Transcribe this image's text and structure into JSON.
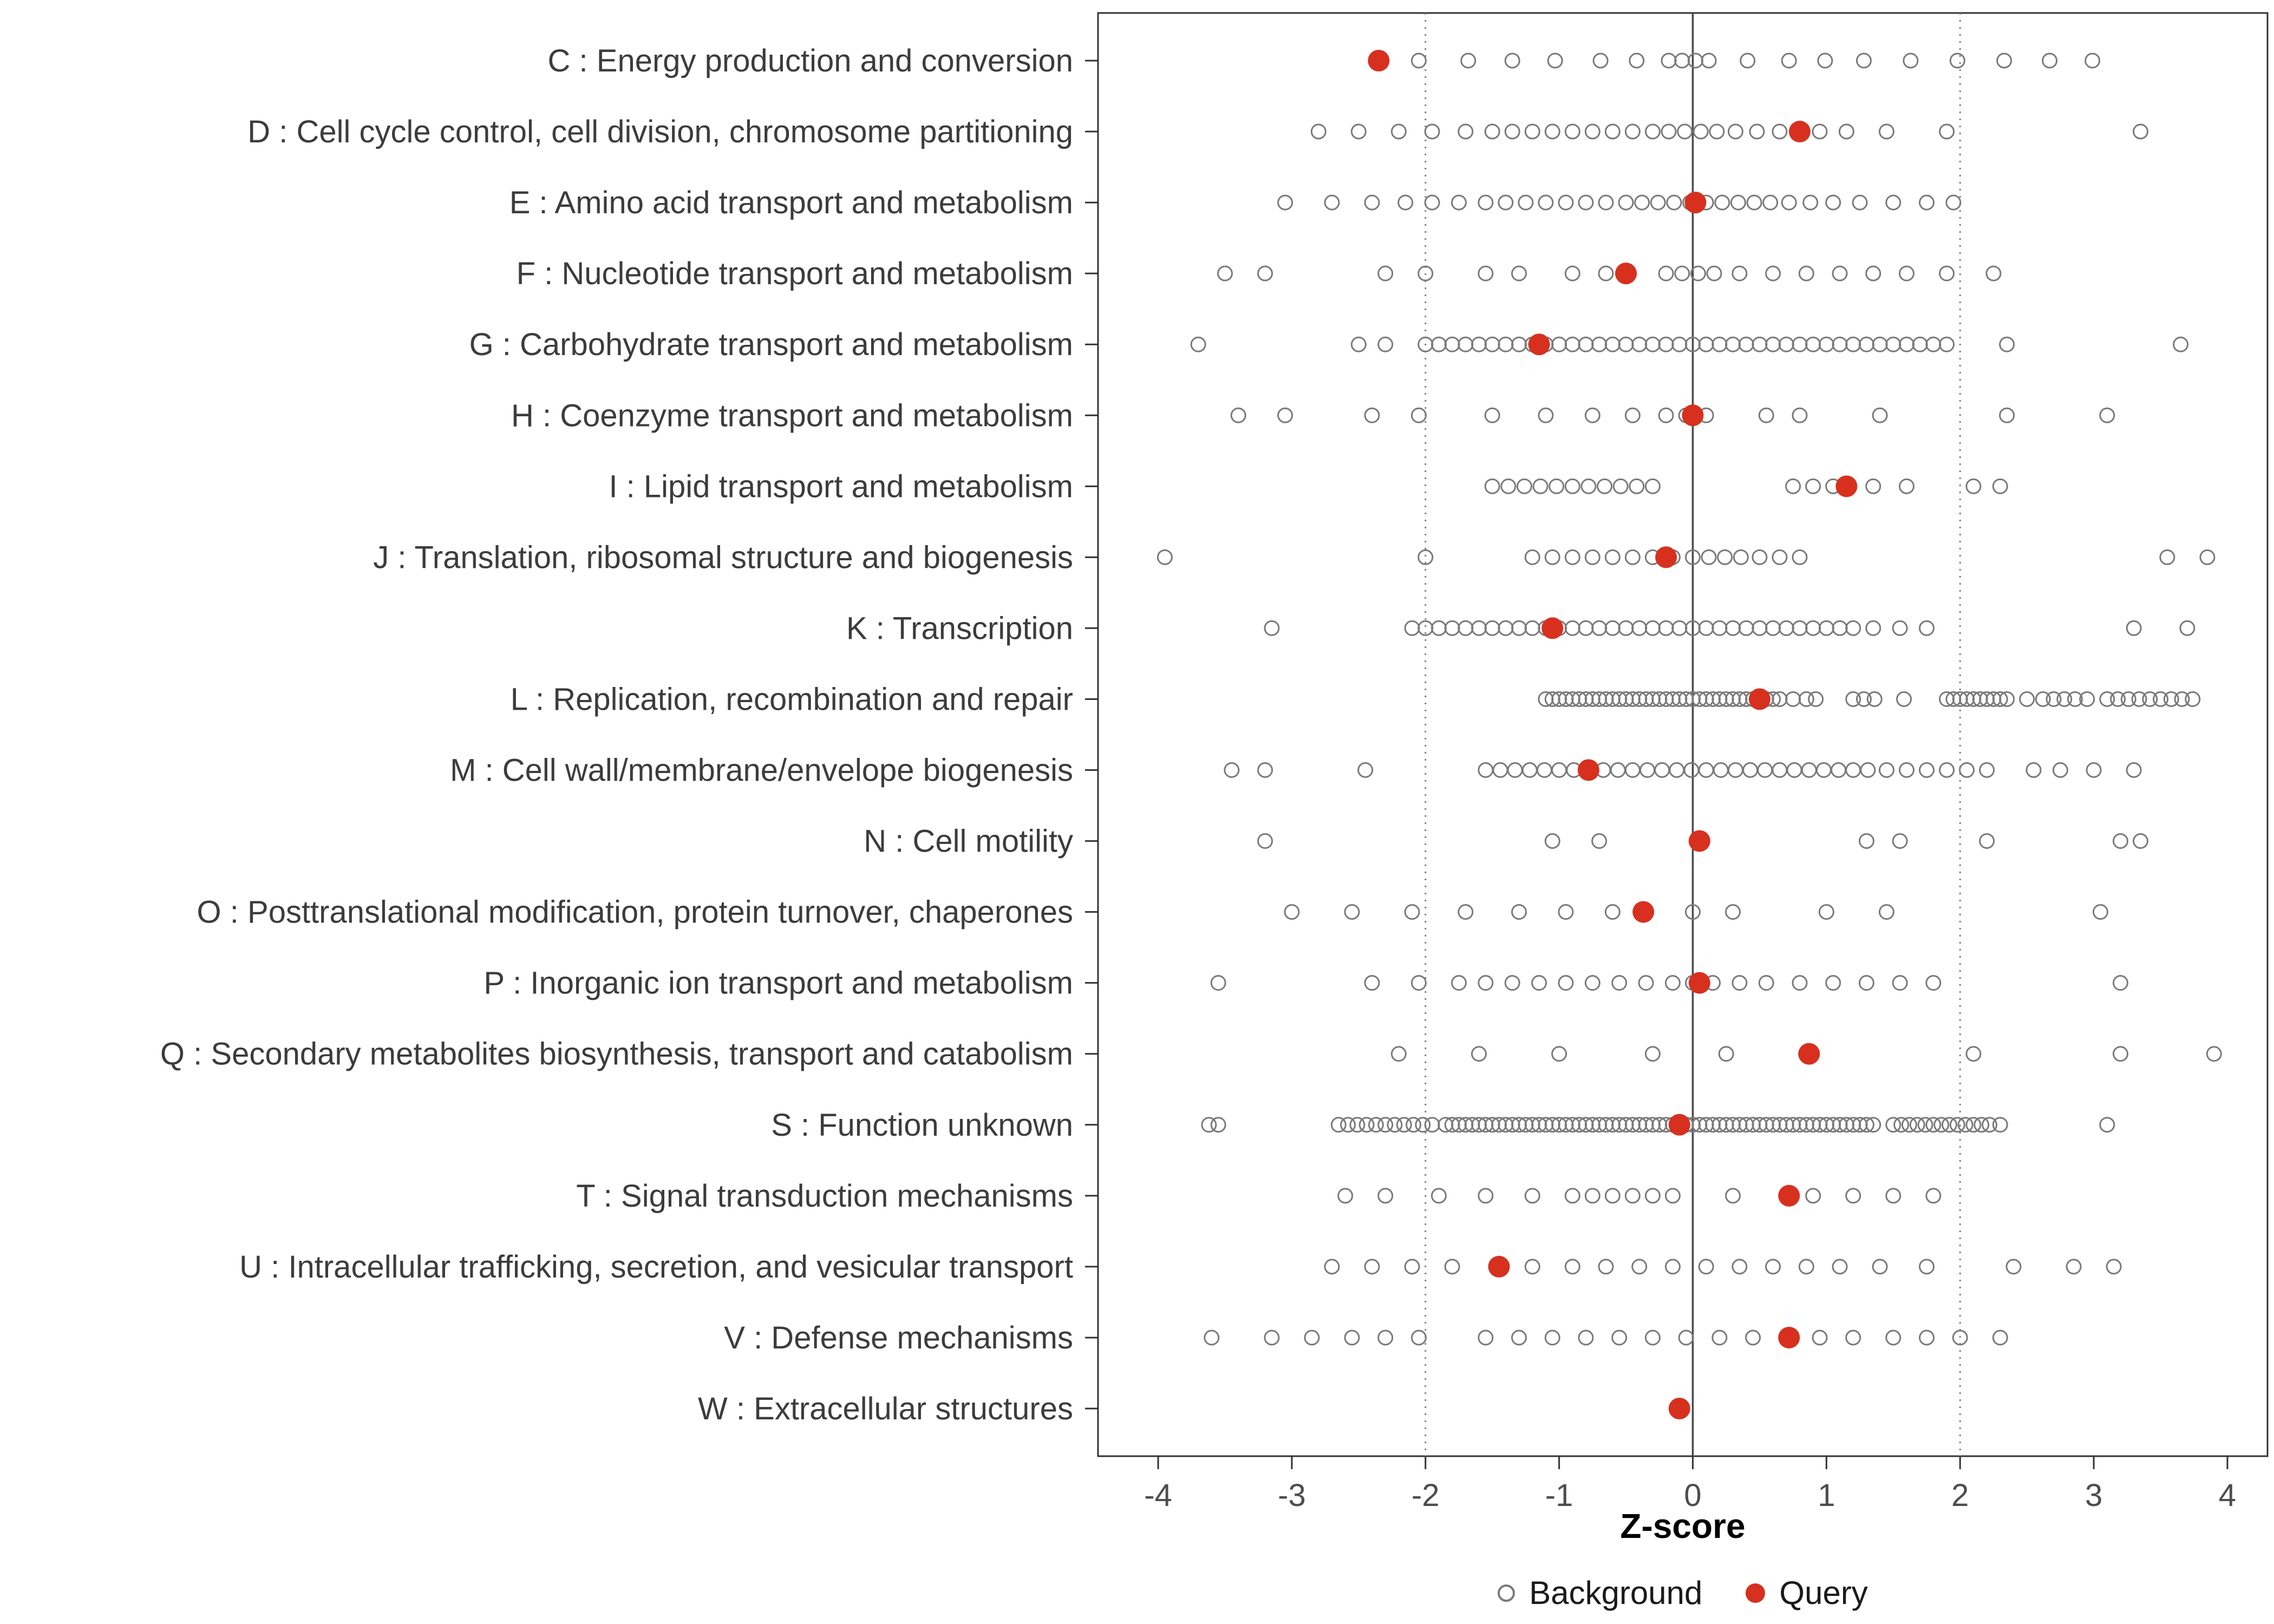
{
  "chart_data": {
    "type": "scatter",
    "title": "",
    "xlabel": "Z-score",
    "ylabel": "",
    "xlim": [
      -4.45,
      4.3
    ],
    "xticks": [
      -4,
      -3,
      -2,
      -1,
      0,
      1,
      2,
      3,
      4
    ],
    "grid": false,
    "legend_position": "bottom",
    "reference_lines": [
      {
        "x": -2,
        "style": "dotted"
      },
      {
        "x": 0,
        "style": "solid"
      },
      {
        "x": 2,
        "style": "dotted"
      }
    ],
    "legend": [
      {
        "label": "Background",
        "marker": "open-circle",
        "color": "#7a7a7a"
      },
      {
        "label": "Query",
        "marker": "filled-circle",
        "color": "#d7301f"
      }
    ],
    "colors": {
      "background_stroke": "#7a7a7a",
      "query_fill": "#d7301f",
      "axis_text": "#4d4d4d",
      "panel_border": "#333333"
    },
    "rows": [
      {
        "category": "C : Energy production and conversion",
        "query": -2.35,
        "background": [
          -2.05,
          -1.68,
          -1.35,
          -1.03,
          -0.69,
          -0.42,
          -0.18,
          -0.08,
          0.02,
          0.12,
          0.41,
          0.72,
          0.99,
          1.28,
          1.63,
          1.98,
          2.33,
          2.67,
          2.99
        ]
      },
      {
        "category": "D : Cell cycle control, cell division, chromosome partitioning",
        "query": 0.8,
        "background": [
          -2.8,
          -2.5,
          -2.2,
          -1.95,
          -1.7,
          -1.5,
          -1.35,
          -1.2,
          -1.05,
          -0.9,
          -0.75,
          -0.6,
          -0.45,
          -0.3,
          -0.18,
          -0.06,
          0.06,
          0.18,
          0.32,
          0.48,
          0.65,
          0.95,
          1.15,
          1.45,
          1.9,
          3.35
        ]
      },
      {
        "category": "E : Amino acid transport and metabolism",
        "query": 0.02,
        "background": [
          -3.05,
          -2.7,
          -2.4,
          -2.15,
          -1.95,
          -1.75,
          -1.55,
          -1.4,
          -1.25,
          -1.1,
          -0.95,
          -0.8,
          -0.65,
          -0.5,
          -0.38,
          -0.26,
          -0.14,
          -0.02,
          0.1,
          0.22,
          0.34,
          0.46,
          0.58,
          0.72,
          0.88,
          1.05,
          1.25,
          1.5,
          1.75,
          1.95
        ]
      },
      {
        "category": "F : Nucleotide transport and metabolism",
        "query": -0.5,
        "background": [
          -3.5,
          -3.2,
          -2.3,
          -2.0,
          -1.55,
          -1.3,
          -0.9,
          -0.65,
          -0.2,
          -0.08,
          0.04,
          0.16,
          0.35,
          0.6,
          0.85,
          1.1,
          1.35,
          1.6,
          1.9,
          2.25
        ]
      },
      {
        "category": "G : Carbohydrate transport and metabolism",
        "query": -1.15,
        "background": [
          -3.7,
          -2.5,
          -2.3,
          -2.0,
          -1.9,
          -1.8,
          -1.7,
          -1.6,
          -1.5,
          -1.4,
          -1.3,
          -1.2,
          -1.1,
          -1.0,
          -0.9,
          -0.8,
          -0.7,
          -0.6,
          -0.5,
          -0.4,
          -0.3,
          -0.2,
          -0.1,
          0.0,
          0.1,
          0.2,
          0.3,
          0.4,
          0.5,
          0.6,
          0.7,
          0.8,
          0.9,
          1.0,
          1.1,
          1.2,
          1.3,
          1.4,
          1.5,
          1.6,
          1.7,
          1.8,
          1.9,
          2.35,
          3.65
        ]
      },
      {
        "category": "H : Coenzyme transport and metabolism",
        "query": 0.0,
        "background": [
          -3.4,
          -3.05,
          -2.4,
          -2.05,
          -1.5,
          -1.1,
          -0.75,
          -0.45,
          -0.2,
          -0.05,
          0.1,
          0.55,
          0.8,
          1.4,
          2.35,
          3.1
        ]
      },
      {
        "category": "I : Lipid transport and metabolism",
        "query": 1.15,
        "background": [
          -1.5,
          -1.38,
          -1.26,
          -1.14,
          -1.02,
          -0.9,
          -0.78,
          -0.66,
          -0.54,
          -0.42,
          -0.3,
          0.75,
          0.9,
          1.05,
          1.35,
          1.6,
          2.1,
          2.3
        ]
      },
      {
        "category": "J : Translation, ribosomal structure and biogenesis",
        "query": -0.2,
        "background": [
          -3.95,
          -2.0,
          -1.2,
          -1.05,
          -0.9,
          -0.75,
          -0.6,
          -0.45,
          -0.3,
          -0.15,
          0.0,
          0.12,
          0.24,
          0.36,
          0.5,
          0.65,
          0.8,
          3.55,
          3.85
        ]
      },
      {
        "category": "K : Transcription",
        "query": -1.05,
        "background": [
          -3.15,
          -2.1,
          -2.0,
          -1.9,
          -1.8,
          -1.7,
          -1.6,
          -1.5,
          -1.4,
          -1.3,
          -1.2,
          -1.1,
          -1.0,
          -0.9,
          -0.8,
          -0.7,
          -0.6,
          -0.5,
          -0.4,
          -0.3,
          -0.2,
          -0.1,
          0.0,
          0.1,
          0.2,
          0.3,
          0.4,
          0.5,
          0.6,
          0.7,
          0.8,
          0.9,
          1.0,
          1.1,
          1.2,
          1.35,
          1.55,
          1.75,
          3.3,
          3.7
        ]
      },
      {
        "category": "L : Replication, recombination and repair",
        "query": 0.5,
        "background": [
          -1.1,
          -1.05,
          -1.0,
          -0.95,
          -0.9,
          -0.85,
          -0.8,
          -0.75,
          -0.7,
          -0.65,
          -0.6,
          -0.55,
          -0.5,
          -0.45,
          -0.4,
          -0.35,
          -0.3,
          -0.25,
          -0.2,
          -0.15,
          -0.1,
          -0.05,
          0.0,
          0.05,
          0.1,
          0.15,
          0.2,
          0.25,
          0.3,
          0.35,
          0.4,
          0.45,
          0.5,
          0.55,
          0.6,
          0.65,
          0.75,
          0.85,
          0.92,
          1.2,
          1.28,
          1.36,
          1.58,
          1.9,
          1.95,
          2.0,
          2.05,
          2.1,
          2.15,
          2.2,
          2.25,
          2.3,
          2.35,
          2.5,
          2.62,
          2.7,
          2.78,
          2.86,
          2.95,
          3.1,
          3.18,
          3.26,
          3.34,
          3.42,
          3.5,
          3.58,
          3.66,
          3.74
        ]
      },
      {
        "category": "M : Cell wall/membrane/envelope biogenesis",
        "query": -0.78,
        "background": [
          -3.45,
          -3.2,
          -2.45,
          -1.55,
          -1.44,
          -1.33,
          -1.22,
          -1.11,
          -1.0,
          -0.89,
          -0.78,
          -0.67,
          -0.56,
          -0.45,
          -0.34,
          -0.23,
          -0.12,
          -0.01,
          0.1,
          0.21,
          0.32,
          0.43,
          0.54,
          0.65,
          0.76,
          0.87,
          0.98,
          1.09,
          1.2,
          1.31,
          1.45,
          1.6,
          1.75,
          1.9,
          2.05,
          2.2,
          2.55,
          2.75,
          3.0,
          3.3
        ]
      },
      {
        "category": "N : Cell motility",
        "query": 0.05,
        "background": [
          -3.2,
          -1.05,
          -0.7,
          1.3,
          1.55,
          2.2,
          3.2,
          3.35
        ]
      },
      {
        "category": "O : Posttranslational modification, protein turnover, chaperones",
        "query": -0.37,
        "background": [
          -3.0,
          -2.55,
          -2.1,
          -1.7,
          -1.3,
          -0.95,
          -0.6,
          0.0,
          0.3,
          1.0,
          1.45,
          3.05
        ]
      },
      {
        "category": "P : Inorganic ion transport and metabolism",
        "query": 0.05,
        "background": [
          -3.55,
          -2.4,
          -2.05,
          -1.75,
          -1.55,
          -1.35,
          -1.15,
          -0.95,
          -0.75,
          -0.55,
          -0.35,
          -0.15,
          0.0,
          0.15,
          0.35,
          0.55,
          0.8,
          1.05,
          1.3,
          1.55,
          1.8,
          3.2
        ]
      },
      {
        "category": "Q : Secondary metabolites biosynthesis, transport and catabolism",
        "query": 0.87,
        "background": [
          -2.2,
          -1.6,
          -1.0,
          -0.3,
          0.25,
          2.1,
          3.2,
          3.9
        ]
      },
      {
        "category": "S : Function unknown",
        "query": -0.1,
        "background": [
          -3.62,
          -3.55,
          -2.65,
          -2.58,
          -2.51,
          -2.44,
          -2.37,
          -2.3,
          -2.23,
          -2.16,
          -2.09,
          -2.02,
          -1.95,
          -1.85,
          -1.8,
          -1.75,
          -1.7,
          -1.65,
          -1.6,
          -1.55,
          -1.5,
          -1.45,
          -1.4,
          -1.35,
          -1.3,
          -1.25,
          -1.2,
          -1.15,
          -1.1,
          -1.05,
          -1.0,
          -0.95,
          -0.9,
          -0.85,
          -0.8,
          -0.75,
          -0.7,
          -0.65,
          -0.6,
          -0.55,
          -0.5,
          -0.45,
          -0.4,
          -0.35,
          -0.3,
          -0.25,
          -0.2,
          -0.15,
          -0.1,
          -0.05,
          0.0,
          0.05,
          0.1,
          0.15,
          0.2,
          0.25,
          0.3,
          0.35,
          0.4,
          0.45,
          0.5,
          0.55,
          0.6,
          0.65,
          0.7,
          0.75,
          0.8,
          0.85,
          0.9,
          0.95,
          1.0,
          1.05,
          1.1,
          1.15,
          1.2,
          1.25,
          1.3,
          1.35,
          1.5,
          1.56,
          1.62,
          1.68,
          1.74,
          1.8,
          1.86,
          1.92,
          1.98,
          2.04,
          2.1,
          2.16,
          2.22,
          2.3,
          3.1
        ]
      },
      {
        "category": "T : Signal transduction mechanisms",
        "query": 0.72,
        "background": [
          -2.6,
          -2.3,
          -1.9,
          -1.55,
          -1.2,
          -0.9,
          -0.75,
          -0.6,
          -0.45,
          -0.3,
          -0.15,
          0.3,
          0.9,
          1.2,
          1.5,
          1.8
        ]
      },
      {
        "category": "U : Intracellular trafficking, secretion, and vesicular transport",
        "query": -1.45,
        "background": [
          -2.7,
          -2.4,
          -2.1,
          -1.8,
          -1.2,
          -0.9,
          -0.65,
          -0.4,
          -0.15,
          0.1,
          0.35,
          0.6,
          0.85,
          1.1,
          1.4,
          1.75,
          2.4,
          2.85,
          3.15
        ]
      },
      {
        "category": "V : Defense mechanisms",
        "query": 0.72,
        "background": [
          -3.6,
          -3.15,
          -2.85,
          -2.55,
          -2.3,
          -2.05,
          -1.55,
          -1.3,
          -1.05,
          -0.8,
          -0.55,
          -0.3,
          -0.05,
          0.2,
          0.45,
          0.95,
          1.2,
          1.5,
          1.75,
          2.0,
          2.3
        ]
      },
      {
        "category": "W : Extracellular structures",
        "query": -0.1,
        "background": []
      }
    ]
  }
}
